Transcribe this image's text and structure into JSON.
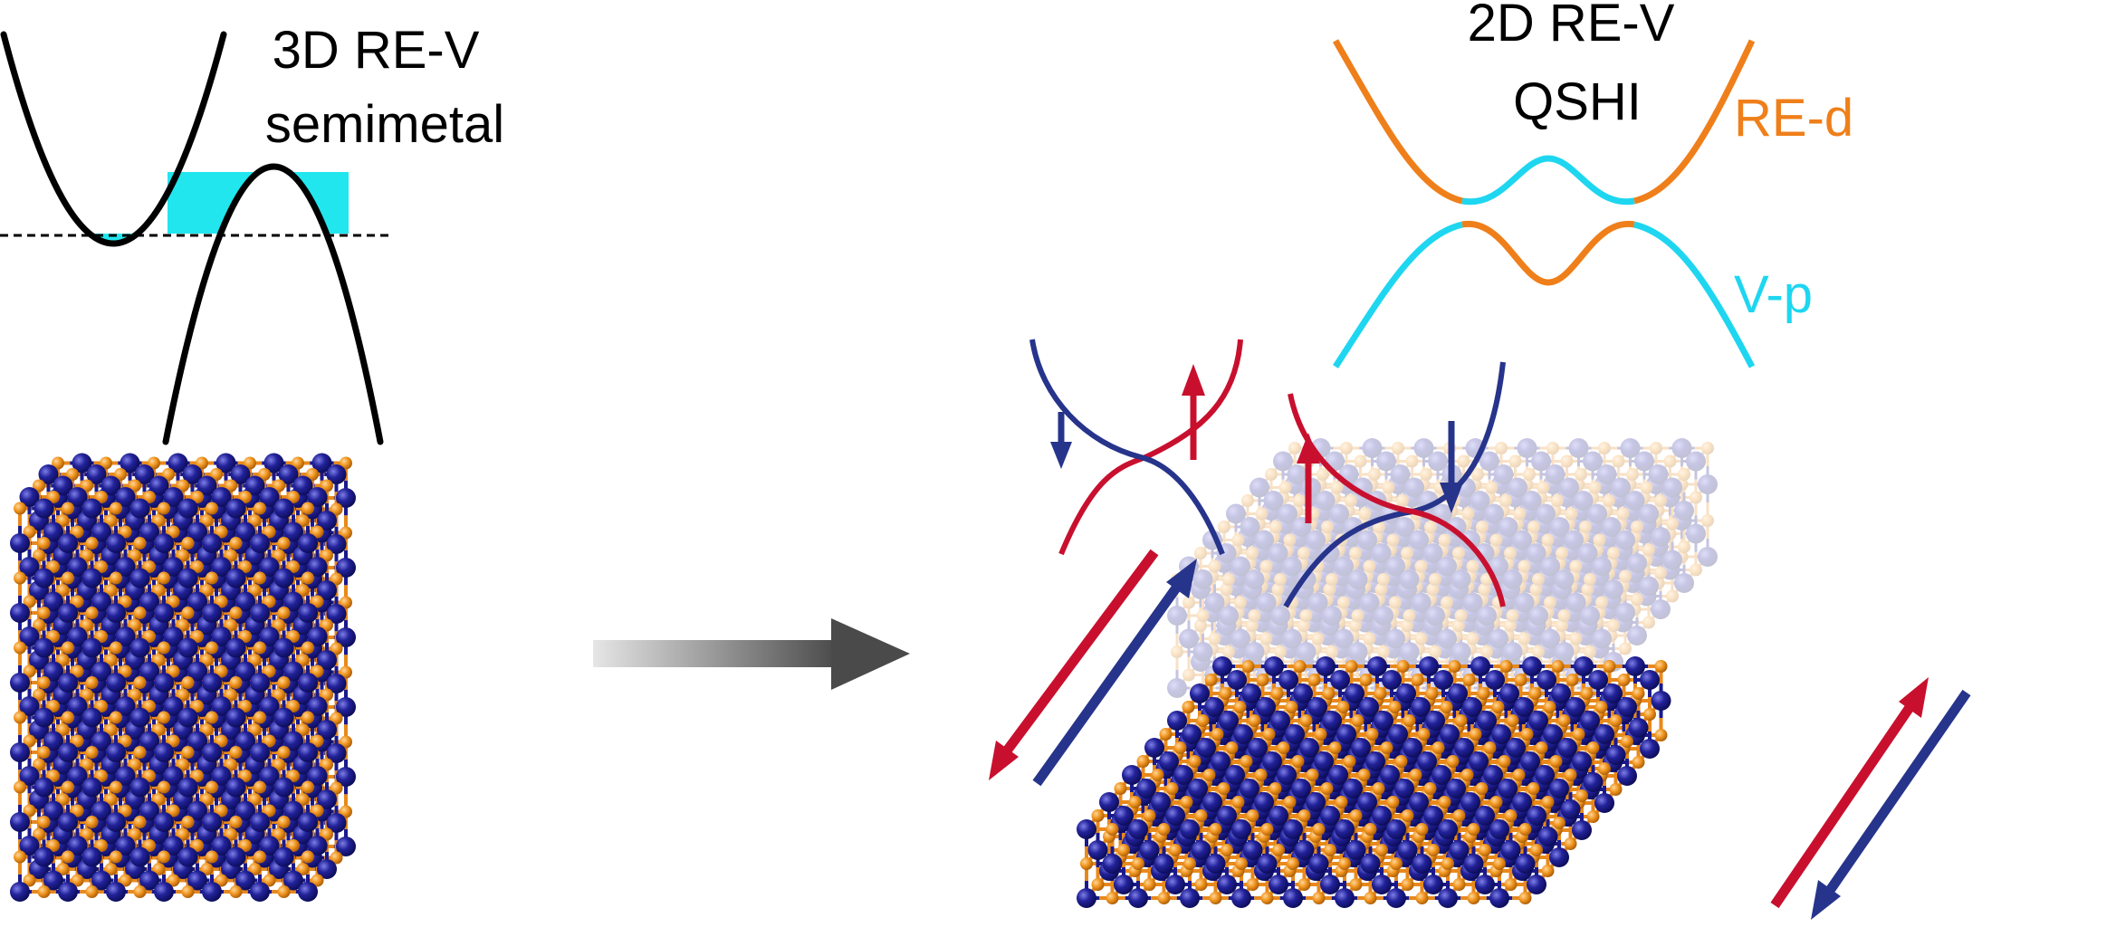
{
  "left_panel": {
    "title_line1": "3D RE-V",
    "title_line2": "semimetal"
  },
  "right_panel": {
    "title_line1": "2D RE-V",
    "title_line2": "QSHI",
    "band_upper_label": "RE-d",
    "band_lower_label": "V-p"
  },
  "colors": {
    "re_d": "#ef7f1a",
    "v_p": "#1ed6f0",
    "spin_up": "#c8102e",
    "spin_down": "#27348b",
    "atom_big": "#1a1a8c",
    "atom_small": "#e8891c",
    "fill": "#22e6ee",
    "arrow": "#4a4a4a"
  },
  "icons": {
    "transform_arrow": "right-arrow-icon",
    "spin_up": "up-arrow-icon",
    "spin_down": "down-arrow-icon"
  }
}
